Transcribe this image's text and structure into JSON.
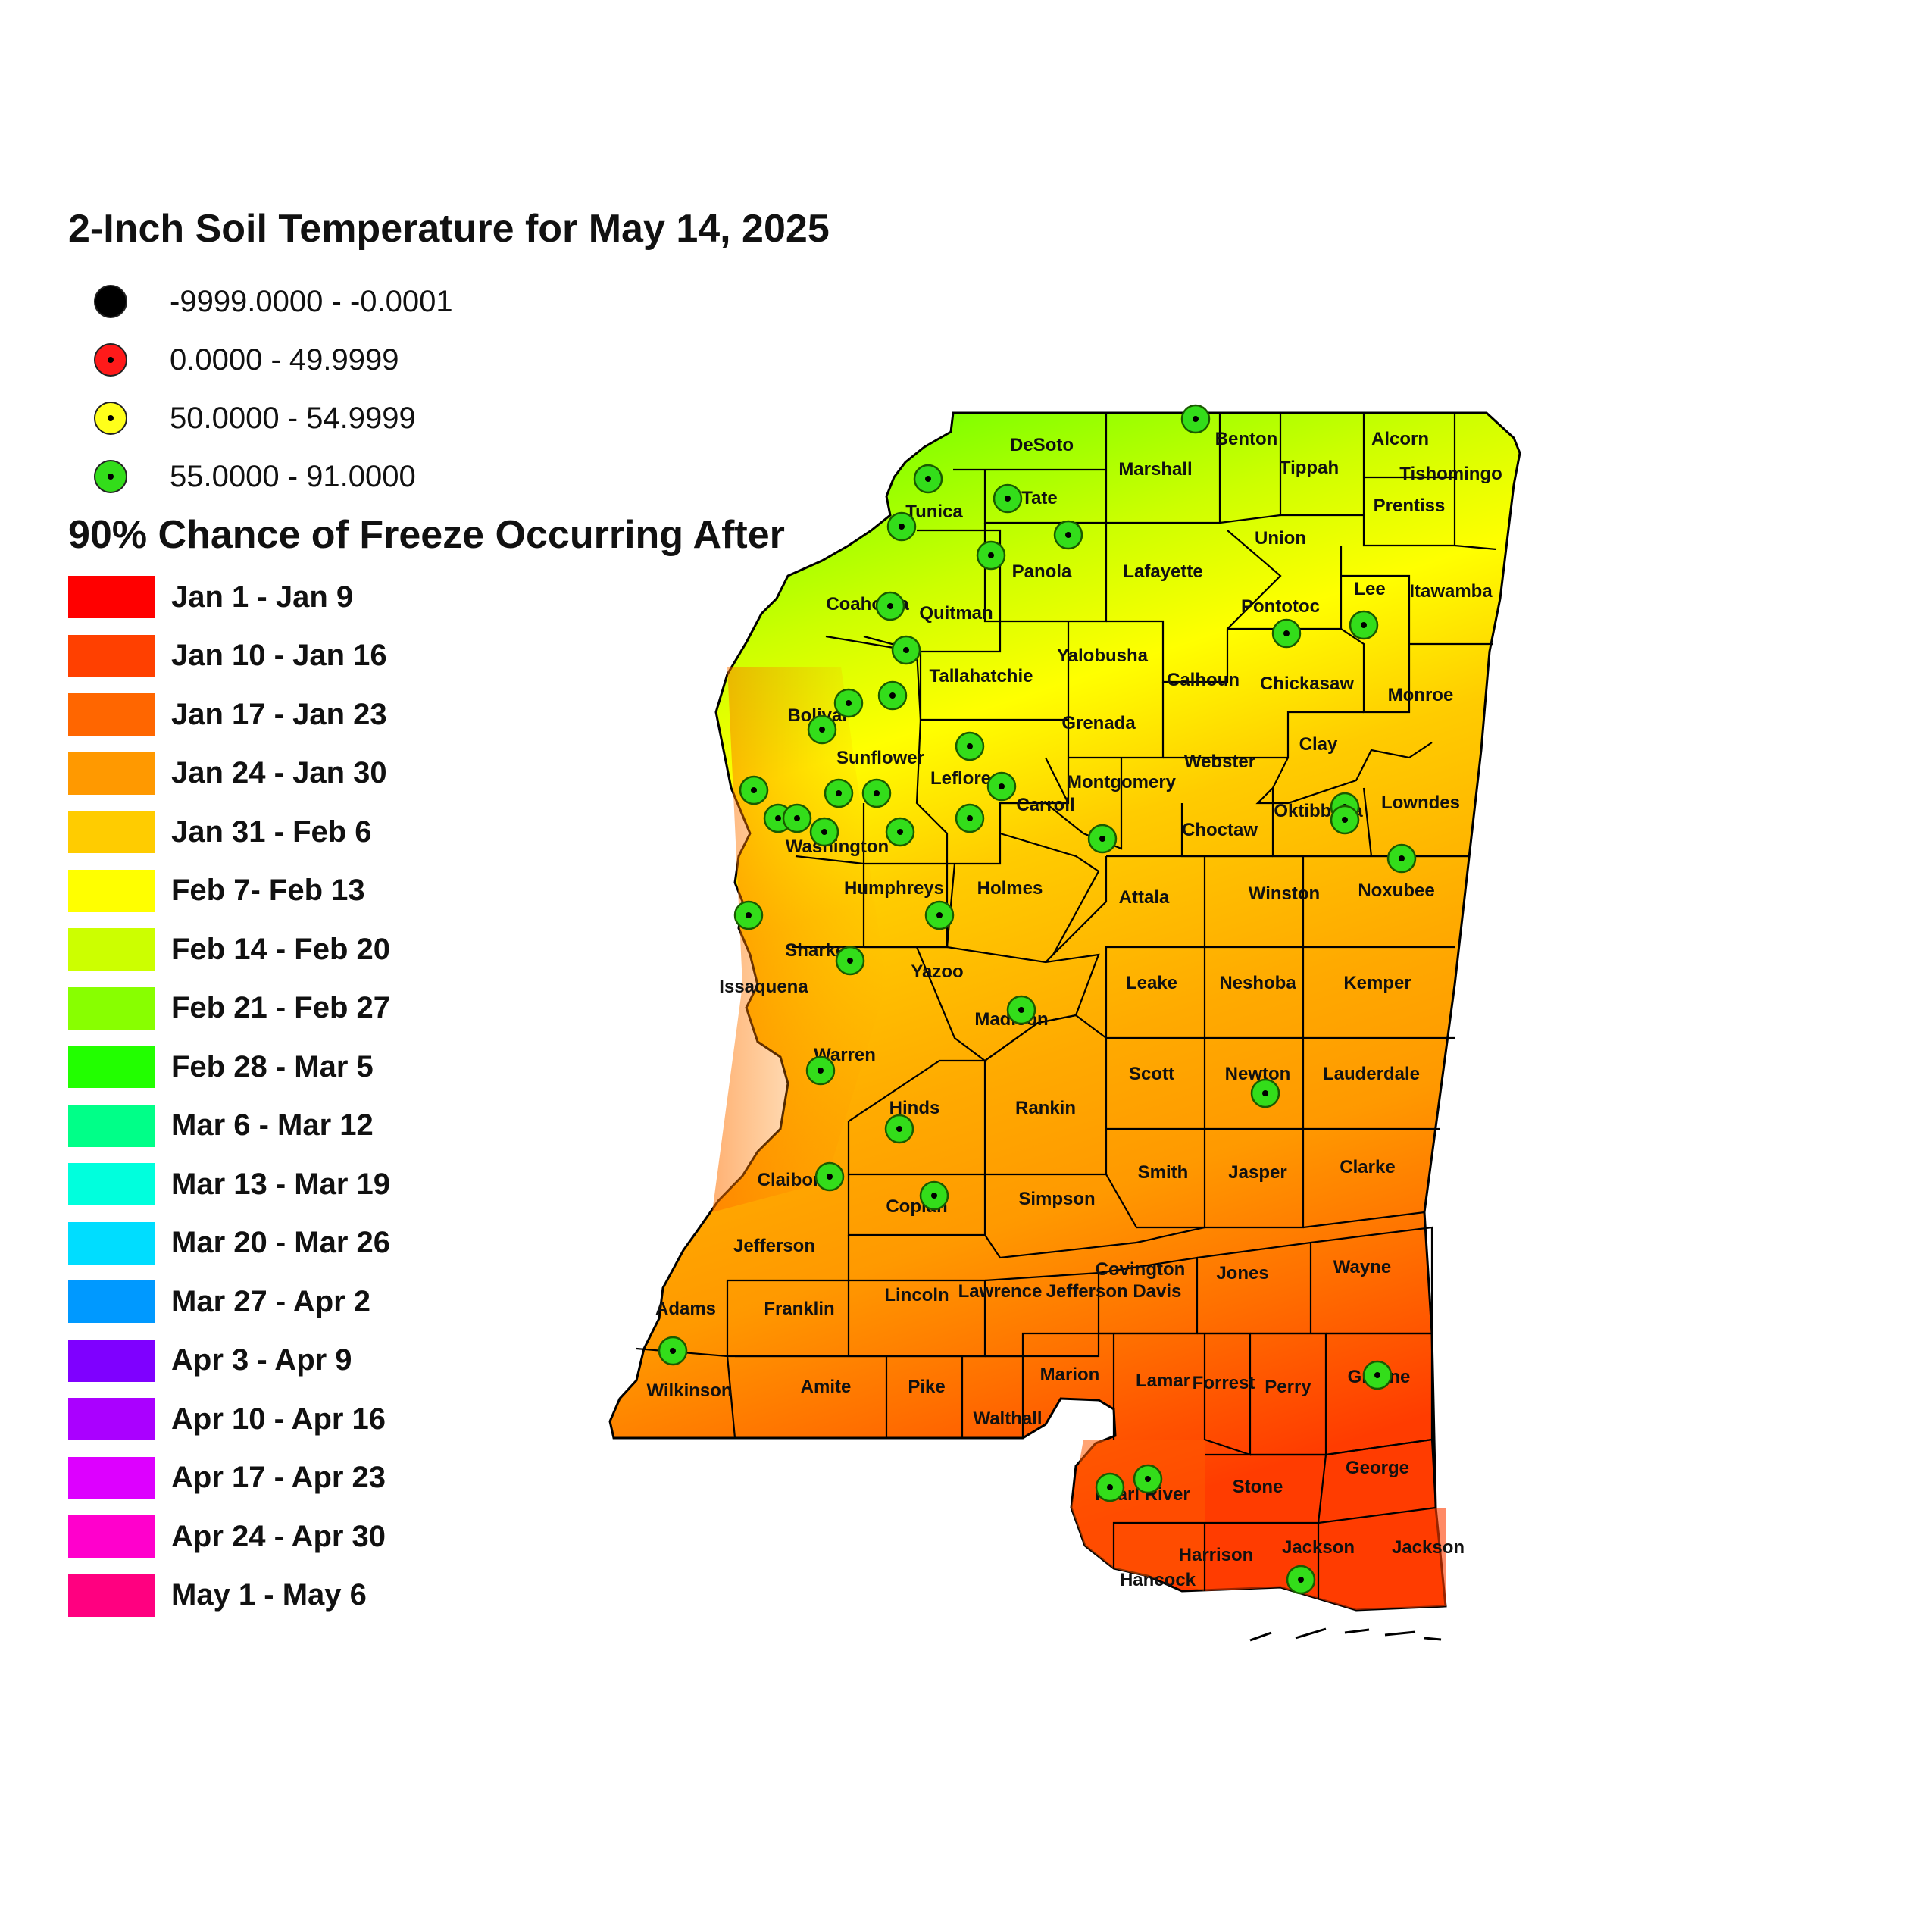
{
  "map_title": "2-Inch Soil Temperature for May 14, 2025",
  "soil_legend": [
    {
      "label": "-9999.0000 - -0.0001",
      "color": "#000000"
    },
    {
      "label": "0.0000 - 49.9999",
      "color": "#ff1a1a"
    },
    {
      "label": "50.0000 - 54.9999",
      "color": "#ffff1a"
    },
    {
      "label": "55.0000 - 91.0000",
      "color": "#33dd1a"
    }
  ],
  "freeze_title": "90% Chance of Freeze Occurring After",
  "freeze_legend": [
    {
      "label": "Jan 1 - Jan 9",
      "color": "#ff0000"
    },
    {
      "label": "Jan 10 - Jan 16",
      "color": "#ff4000"
    },
    {
      "label": "Jan 17 - Jan 23",
      "color": "#ff6600"
    },
    {
      "label": "Jan 24 - Jan 30",
      "color": "#ff9900"
    },
    {
      "label": "Jan 31 - Feb 6",
      "color": "#ffcc00"
    },
    {
      "label": "Feb 7- Feb 13",
      "color": "#ffff00"
    },
    {
      "label": "Feb 14 - Feb 20",
      "color": "#ccff00"
    },
    {
      "label": "Feb 21 - Feb 27",
      "color": "#88ff00"
    },
    {
      "label": "Feb 28 - Mar 5",
      "color": "#22ff00"
    },
    {
      "label": "Mar 6 - Mar 12",
      "color": "#00ff88"
    },
    {
      "label": "Mar 13 - Mar 19",
      "color": "#00ffdd"
    },
    {
      "label": "Mar 20 - Mar 26",
      "color": "#00ddff"
    },
    {
      "label": "Mar 27 - Apr 2",
      "color": "#0099ff"
    },
    {
      "label": "Apr 3 - Apr 9",
      "color": "#7f00ff"
    },
    {
      "label": "Apr 10 - Apr 16",
      "color": "#aa00ff"
    },
    {
      "label": "Apr 17 - Apr 23",
      "color": "#dd00ff"
    },
    {
      "label": "Apr 24 - Apr 30",
      "color": "#ff00cc"
    },
    {
      "label": "May 1 - May 6",
      "color": "#ff0080"
    }
  ],
  "counties": [
    "DeSoto",
    "Marshall",
    "Benton",
    "Tippah",
    "Alcorn",
    "Tishomingo",
    "Tunica",
    "Tate",
    "Prentiss",
    "Union",
    "Panola",
    "Lafayette",
    "Coahoma",
    "Quitman",
    "Pontotoc",
    "Lee",
    "Itawamba",
    "Yalobusha",
    "Calhoun",
    "Chickasaw",
    "Tallahatchie",
    "Monroe",
    "Bolivar",
    "Grenada",
    "Clay",
    "Sunflower",
    "Webster",
    "Leflore",
    "Montgomery",
    "Carroll",
    "Oktibbeha",
    "Lowndes",
    "Choctaw",
    "Washington",
    "Humphreys",
    "Holmes",
    "Attala",
    "Winston",
    "Noxubee",
    "Sharkey",
    "Yazoo",
    "Issaquena",
    "Leake",
    "Neshoba",
    "Kemper",
    "Madison",
    "Warren",
    "Scott",
    "Newton",
    "Lauderdale",
    "Hinds",
    "Rankin",
    "Smith",
    "Jasper",
    "Clarke",
    "Claiborne",
    "Copiah",
    "Simpson",
    "Jefferson",
    "Covington",
    "Jones",
    "Wayne",
    "Adams",
    "Franklin",
    "Lincoln",
    "Lawrence",
    "Jefferson Davis",
    "Wilkinson",
    "Amite",
    "Pike",
    "Walthall",
    "Marion",
    "Lamar",
    "Forrest",
    "Perry",
    "Greene",
    "Pearl River",
    "Stone",
    "George",
    "Harrison",
    "Jackson",
    "Jackson",
    "Hancock"
  ]
}
